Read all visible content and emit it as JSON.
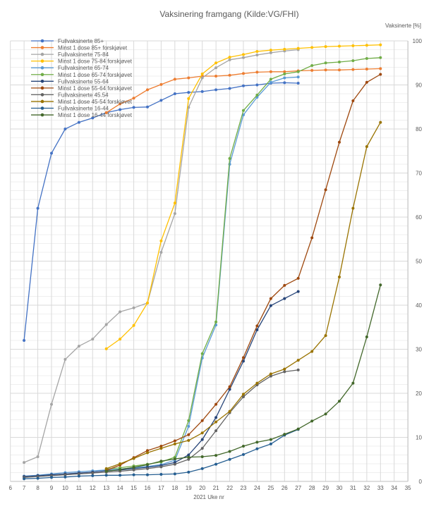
{
  "title": "Vaksinering framgang (Kilde:VG/FHI)",
  "x_axis": {
    "title": "2021 Uke nr",
    "ticks": [
      6,
      7,
      8,
      9,
      10,
      11,
      12,
      13,
      14,
      15,
      16,
      17,
      18,
      19,
      20,
      21,
      22,
      23,
      24,
      25,
      26,
      27,
      28,
      29,
      30,
      31,
      32,
      33,
      34,
      35
    ]
  },
  "y_axis": {
    "title": "Vaksinerte [%]",
    "ticks": [
      0,
      10,
      20,
      30,
      40,
      50,
      60,
      70,
      80,
      90,
      100
    ],
    "minor_step": 2
  },
  "legend_position": "top-left",
  "grid_color_major": "#d9d9d9",
  "grid_color_minor": "#efefef",
  "axis_line_color": "#bfbfbf",
  "text_color": "#595959",
  "chart_data": {
    "type": "line",
    "title": "Vaksinering framgang (Kilde:VG/FHI)",
    "xlabel": "2021 Uke nr",
    "ylabel": "Vaksinerte [%]",
    "xlim": [
      6,
      35
    ],
    "ylim": [
      0,
      100
    ],
    "grid": true,
    "legend_position": "top-left",
    "series": [
      {
        "name": "Fullvaksinerte 85+",
        "color": "#4472C4",
        "points": [
          [
            7,
            32
          ],
          [
            8,
            62
          ],
          [
            9,
            74.5
          ],
          [
            10,
            80
          ],
          [
            11,
            81.5
          ],
          [
            12,
            82.5
          ],
          [
            13,
            83.7
          ],
          [
            14,
            84.4
          ],
          [
            15,
            84.9
          ],
          [
            16,
            85
          ],
          [
            17,
            86.5
          ],
          [
            18,
            88
          ],
          [
            19,
            88.3
          ],
          [
            20,
            88.5
          ],
          [
            21,
            88.9
          ],
          [
            22,
            89.2
          ],
          [
            23,
            89.8
          ],
          [
            24,
            90
          ],
          [
            25,
            90.4
          ],
          [
            26,
            90.5
          ],
          [
            27,
            90.4
          ]
        ]
      },
      {
        "name": "Minst 1 dose 85+ forskjøvet",
        "color": "#ED7D31",
        "points": [
          [
            13,
            83.7
          ],
          [
            14,
            85.7
          ],
          [
            15,
            87
          ],
          [
            16,
            88.9
          ],
          [
            17,
            90.1
          ],
          [
            18,
            91.3
          ],
          [
            19,
            91.6
          ],
          [
            20,
            92
          ],
          [
            21,
            92
          ],
          [
            22,
            92.2
          ],
          [
            23,
            92.6
          ],
          [
            24,
            92.9
          ],
          [
            25,
            93
          ],
          [
            26,
            93
          ],
          [
            27,
            93.2
          ],
          [
            28,
            93.3
          ],
          [
            29,
            93.4
          ],
          [
            30,
            93.4
          ],
          [
            31,
            93.5
          ],
          [
            32,
            93.6
          ],
          [
            33,
            93.7
          ]
        ]
      },
      {
        "name": "Fullvaksinerte 75-84",
        "color": "#A5A5A5",
        "points": [
          [
            7,
            4.3
          ],
          [
            8,
            5.6
          ],
          [
            9,
            17.5
          ],
          [
            10,
            27.7
          ],
          [
            11,
            30.7
          ],
          [
            12,
            32.3
          ],
          [
            13,
            35.6
          ],
          [
            14,
            38.5
          ],
          [
            15,
            39.4
          ],
          [
            16,
            40.5
          ],
          [
            17,
            52
          ],
          [
            18,
            60.8
          ],
          [
            19,
            84.9
          ],
          [
            20,
            91.6
          ],
          [
            21,
            93.9
          ],
          [
            22,
            95.7
          ],
          [
            23,
            96.2
          ],
          [
            24,
            96.8
          ],
          [
            25,
            97.3
          ],
          [
            26,
            97.7
          ],
          [
            27,
            98
          ]
        ]
      },
      {
        "name": "Minst 1 dose 75-84 forskjøvet",
        "color": "#FFC000",
        "points": [
          [
            13,
            30.1
          ],
          [
            14,
            32.3
          ],
          [
            15,
            35.4
          ],
          [
            16,
            40.5
          ],
          [
            17,
            54.6
          ],
          [
            18,
            63.2
          ],
          [
            19,
            86.9
          ],
          [
            20,
            92.5
          ],
          [
            21,
            95
          ],
          [
            22,
            96.3
          ],
          [
            23,
            96.9
          ],
          [
            24,
            97.6
          ],
          [
            25,
            97.9
          ],
          [
            26,
            98.1
          ],
          [
            27,
            98.3
          ],
          [
            28,
            98.5
          ],
          [
            29,
            98.7
          ],
          [
            30,
            98.8
          ],
          [
            31,
            98.9
          ],
          [
            32,
            99
          ],
          [
            33,
            99.1
          ]
        ]
      },
      {
        "name": "Fullvaksinerte 65-74",
        "color": "#5B9BD5",
        "points": [
          [
            7,
            1.2
          ],
          [
            8,
            1.4
          ],
          [
            9,
            1.7
          ],
          [
            10,
            2
          ],
          [
            11,
            2.2
          ],
          [
            12,
            2.4
          ],
          [
            13,
            2.6
          ],
          [
            14,
            2.8
          ],
          [
            15,
            3.1
          ],
          [
            16,
            3.4
          ],
          [
            17,
            3.8
          ],
          [
            18,
            4.8
          ],
          [
            19,
            12.5
          ],
          [
            20,
            28
          ],
          [
            21,
            35.5
          ],
          [
            22,
            72
          ],
          [
            23,
            83.2
          ],
          [
            24,
            87.2
          ],
          [
            25,
            90.6
          ],
          [
            26,
            91.6
          ],
          [
            27,
            91.8
          ]
        ]
      },
      {
        "name": "Minst 1 dose 65-74 forskjøvet",
        "color": "#70AD47",
        "points": [
          [
            13,
            2.8
          ],
          [
            14,
            3.1
          ],
          [
            15,
            3.5
          ],
          [
            16,
            3.9
          ],
          [
            17,
            4.4
          ],
          [
            18,
            5.5
          ],
          [
            19,
            13.8
          ],
          [
            20,
            29
          ],
          [
            21,
            36.2
          ],
          [
            22,
            73.3
          ],
          [
            23,
            84.2
          ],
          [
            24,
            87.7
          ],
          [
            25,
            91.3
          ],
          [
            26,
            92.5
          ],
          [
            27,
            93
          ],
          [
            28,
            94.4
          ],
          [
            29,
            95
          ],
          [
            30,
            95.2
          ],
          [
            31,
            95.5
          ],
          [
            32,
            96
          ],
          [
            33,
            96.2
          ]
        ]
      },
      {
        "name": "Fullvaksinerte 55-64",
        "color": "#264478",
        "points": [
          [
            7,
            1.1
          ],
          [
            8,
            1.3
          ],
          [
            9,
            1.5
          ],
          [
            10,
            1.7
          ],
          [
            11,
            1.9
          ],
          [
            12,
            2.1
          ],
          [
            13,
            2.4
          ],
          [
            14,
            2.6
          ],
          [
            15,
            2.9
          ],
          [
            16,
            3.2
          ],
          [
            17,
            3.6
          ],
          [
            18,
            4.3
          ],
          [
            19,
            6
          ],
          [
            20,
            9.5
          ],
          [
            21,
            14.5
          ],
          [
            22,
            20.9
          ],
          [
            23,
            27.3
          ],
          [
            24,
            34.4
          ],
          [
            25,
            39.9
          ],
          [
            26,
            41.5
          ],
          [
            27,
            43.1
          ]
        ]
      },
      {
        "name": "Minst 1 dose 55-64 forskjøvet",
        "color": "#9E480E",
        "points": [
          [
            13,
            2.5
          ],
          [
            14,
            3.7
          ],
          [
            15,
            5.4
          ],
          [
            16,
            7
          ],
          [
            17,
            8
          ],
          [
            18,
            9.2
          ],
          [
            19,
            10.6
          ],
          [
            20,
            13.8
          ],
          [
            21,
            17.5
          ],
          [
            22,
            21.5
          ],
          [
            23,
            28.1
          ],
          [
            24,
            35.3
          ],
          [
            25,
            41.5
          ],
          [
            26,
            44.5
          ],
          [
            27,
            46.1
          ],
          [
            28,
            55.3
          ],
          [
            29,
            66.2
          ],
          [
            30,
            77
          ],
          [
            31,
            86.4
          ],
          [
            32,
            90.6
          ],
          [
            33,
            92.4
          ]
        ]
      },
      {
        "name": "Fullvaksinerte 45.54",
        "color": "#636363",
        "points": [
          [
            7,
            0.9
          ],
          [
            8,
            1.1
          ],
          [
            9,
            1.3
          ],
          [
            10,
            1.5
          ],
          [
            11,
            1.7
          ],
          [
            12,
            1.9
          ],
          [
            13,
            2.1
          ],
          [
            14,
            2.3
          ],
          [
            15,
            2.6
          ],
          [
            16,
            2.9
          ],
          [
            17,
            3.3
          ],
          [
            18,
            3.9
          ],
          [
            19,
            5
          ],
          [
            20,
            7.5
          ],
          [
            21,
            11.5
          ],
          [
            22,
            15.6
          ],
          [
            23,
            19.2
          ],
          [
            24,
            21.9
          ],
          [
            25,
            23.9
          ],
          [
            26,
            24.9
          ],
          [
            27,
            25.3
          ]
        ]
      },
      {
        "name": "Minst 1 dose 45-54 forskjøvet",
        "color": "#997300",
        "points": [
          [
            13,
            2.9
          ],
          [
            14,
            4
          ],
          [
            15,
            5.2
          ],
          [
            16,
            6.5
          ],
          [
            17,
            7.5
          ],
          [
            18,
            8.5
          ],
          [
            19,
            9.3
          ],
          [
            20,
            11
          ],
          [
            21,
            13.5
          ],
          [
            22,
            15.9
          ],
          [
            23,
            19.8
          ],
          [
            24,
            22.3
          ],
          [
            25,
            24.4
          ],
          [
            26,
            25.5
          ],
          [
            27,
            27.5
          ],
          [
            28,
            29.5
          ],
          [
            29,
            33.1
          ],
          [
            30,
            46.4
          ],
          [
            31,
            62
          ],
          [
            32,
            76
          ],
          [
            33,
            81.5
          ]
        ]
      },
      {
        "name": "Fullvaksinerte 16-44",
        "color": "#255E91",
        "points": [
          [
            7,
            0.6
          ],
          [
            8,
            0.7
          ],
          [
            9,
            0.9
          ],
          [
            10,
            1
          ],
          [
            11,
            1.2
          ],
          [
            12,
            1.3
          ],
          [
            13,
            1.4
          ],
          [
            14,
            1.4
          ],
          [
            15,
            1.5
          ],
          [
            16,
            1.5
          ],
          [
            17,
            1.6
          ],
          [
            18,
            1.7
          ],
          [
            19,
            2.1
          ],
          [
            20,
            2.9
          ],
          [
            21,
            3.9
          ],
          [
            22,
            5
          ],
          [
            23,
            6.1
          ],
          [
            24,
            7.4
          ],
          [
            25,
            8.5
          ],
          [
            26,
            10.5
          ],
          [
            27,
            11.8
          ]
        ]
      },
      {
        "name": "Minst 1 dose 16-44 forskjøvet",
        "color": "#43682B",
        "points": [
          [
            13,
            2.3
          ],
          [
            14,
            2.7
          ],
          [
            15,
            3.2
          ],
          [
            16,
            3.8
          ],
          [
            17,
            4.6
          ],
          [
            18,
            5.1
          ],
          [
            19,
            5.5
          ],
          [
            20,
            5.6
          ],
          [
            21,
            5.9
          ],
          [
            22,
            6.8
          ],
          [
            23,
            8
          ],
          [
            24,
            8.9
          ],
          [
            25,
            9.5
          ],
          [
            26,
            10.7
          ],
          [
            27,
            11.9
          ],
          [
            28,
            13.7
          ],
          [
            29,
            15.3
          ],
          [
            30,
            18.2
          ],
          [
            31,
            22.3
          ],
          [
            32,
            32.8
          ],
          [
            33,
            44.6
          ]
        ]
      }
    ]
  }
}
